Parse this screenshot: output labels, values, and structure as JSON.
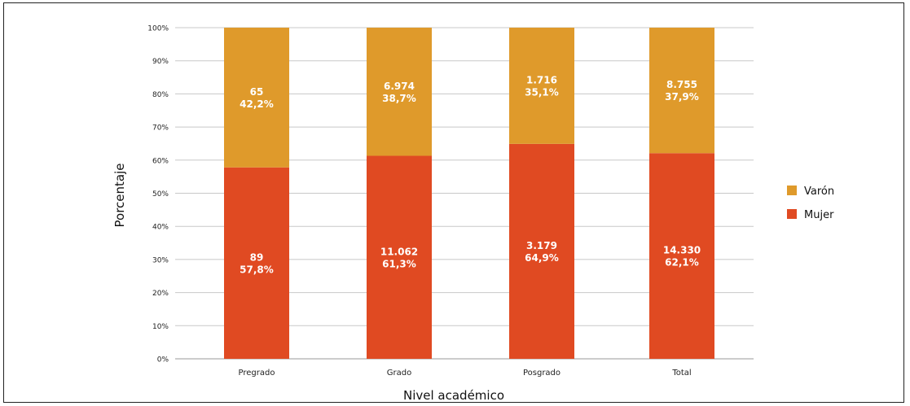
{
  "chart_data": {
    "type": "bar",
    "stacked": true,
    "percent_stacked": true,
    "categories": [
      "Pregrado",
      "Grado",
      "Posgrado",
      "Total"
    ],
    "xlabel": "Nivel académico",
    "ylabel": "Porcentaje",
    "ylim": [
      0,
      100
    ],
    "y_ticks": [
      "0%",
      "10%",
      "20%",
      "30%",
      "40%",
      "50%",
      "60%",
      "70%",
      "80%",
      "90%",
      "100%"
    ],
    "grid": true,
    "legend_position": "right",
    "series": [
      {
        "name": "Mujer",
        "color": "#e04a22",
        "percent": [
          57.8,
          61.3,
          64.9,
          62.1
        ],
        "count_labels": [
          "89",
          "11.062",
          "3.179",
          "14.330"
        ],
        "percent_labels": [
          "57,8%",
          "61,3%",
          "64,9%",
          "62,1%"
        ]
      },
      {
        "name": "Varón",
        "color": "#df9a2b",
        "percent": [
          42.2,
          38.7,
          35.1,
          37.9
        ],
        "count_labels": [
          "65",
          "6.974",
          "1.716",
          "8.755"
        ],
        "percent_labels": [
          "42,2%",
          "38,7%",
          "35,1%",
          "37,9%"
        ]
      }
    ]
  }
}
